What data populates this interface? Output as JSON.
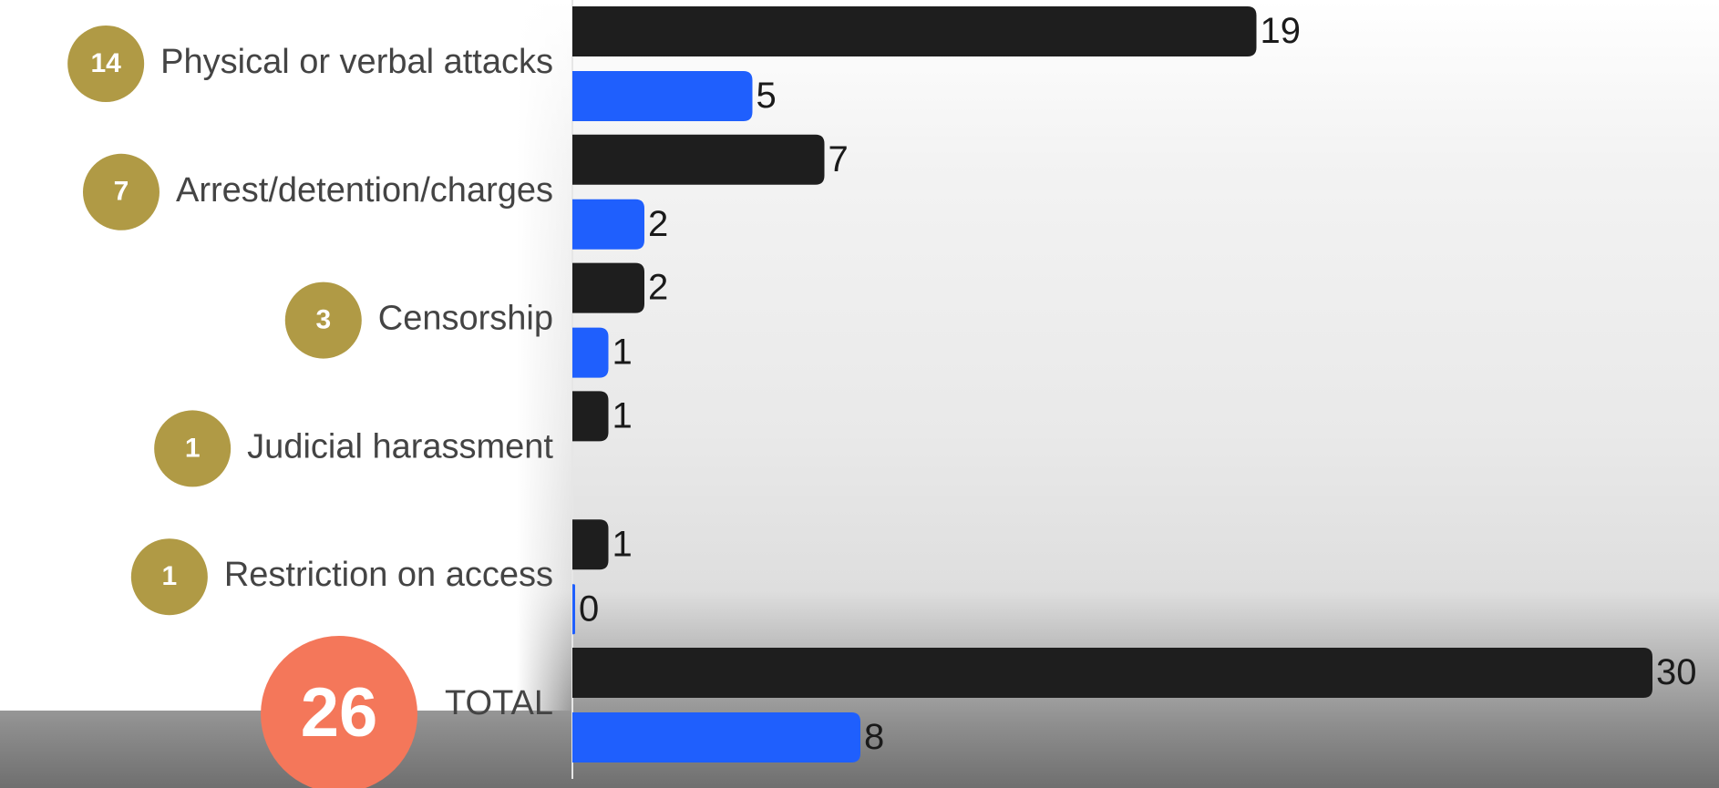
{
  "chart_data": {
    "type": "bar",
    "categories": [
      "Physical or verbal attacks",
      "Arrest/detention/charges",
      "Censorship",
      "Judicial harassment",
      "Restriction on access",
      "TOTAL"
    ],
    "badge_values": [
      14,
      7,
      3,
      1,
      1,
      26
    ],
    "series": [
      {
        "color": "#1e1e1e",
        "values": [
          19,
          7,
          2,
          1,
          1,
          30
        ]
      },
      {
        "color": "#1f5ffd",
        "values": [
          5,
          2,
          1,
          null,
          0,
          8
        ]
      }
    ],
    "xlim": [
      0,
      30
    ]
  }
}
